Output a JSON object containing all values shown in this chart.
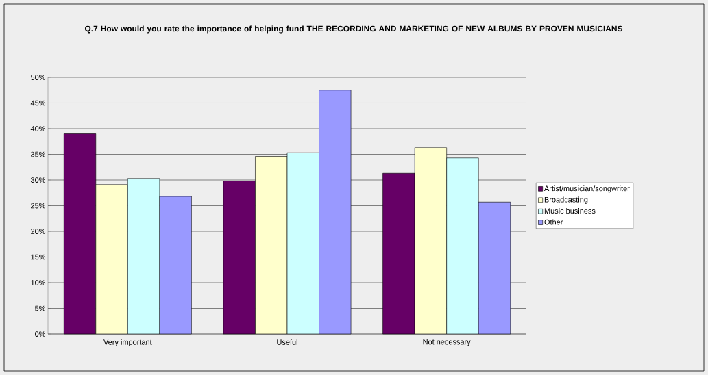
{
  "chart_data": {
    "type": "bar",
    "title": "Q.7 How would you rate the importance of helping fund THE RECORDING AND MARKETING OF NEW ALBUMS BY PROVEN MUSICIANS",
    "categories": [
      "Very important",
      "Useful",
      "Not necessary"
    ],
    "series": [
      {
        "name": "Artist/musician/songwriter",
        "color": "#660066",
        "values": [
          39.0,
          29.8,
          31.3
        ]
      },
      {
        "name": "Broadcasting",
        "color": "#ffffcc",
        "values": [
          29.1,
          34.6,
          36.3
        ]
      },
      {
        "name": "Music business",
        "color": "#ccffff",
        "values": [
          30.3,
          35.3,
          34.3
        ]
      },
      {
        "name": "Other",
        "color": "#9999ff",
        "values": [
          26.8,
          47.5,
          25.7
        ]
      }
    ],
    "ylim": [
      0,
      50
    ],
    "yticks": [
      {
        "value": 0,
        "label": "0%"
      },
      {
        "value": 5,
        "label": "5%"
      },
      {
        "value": 10,
        "label": "10%"
      },
      {
        "value": 15,
        "label": "15%"
      },
      {
        "value": 20,
        "label": "20%"
      },
      {
        "value": 25,
        "label": "25%"
      },
      {
        "value": 30,
        "label": "30%"
      },
      {
        "value": 35,
        "label": "35%"
      },
      {
        "value": 40,
        "label": "40%"
      },
      {
        "value": 45,
        "label": "45%"
      },
      {
        "value": 50,
        "label": "50%"
      }
    ],
    "grid": "y",
    "legend": "right"
  }
}
